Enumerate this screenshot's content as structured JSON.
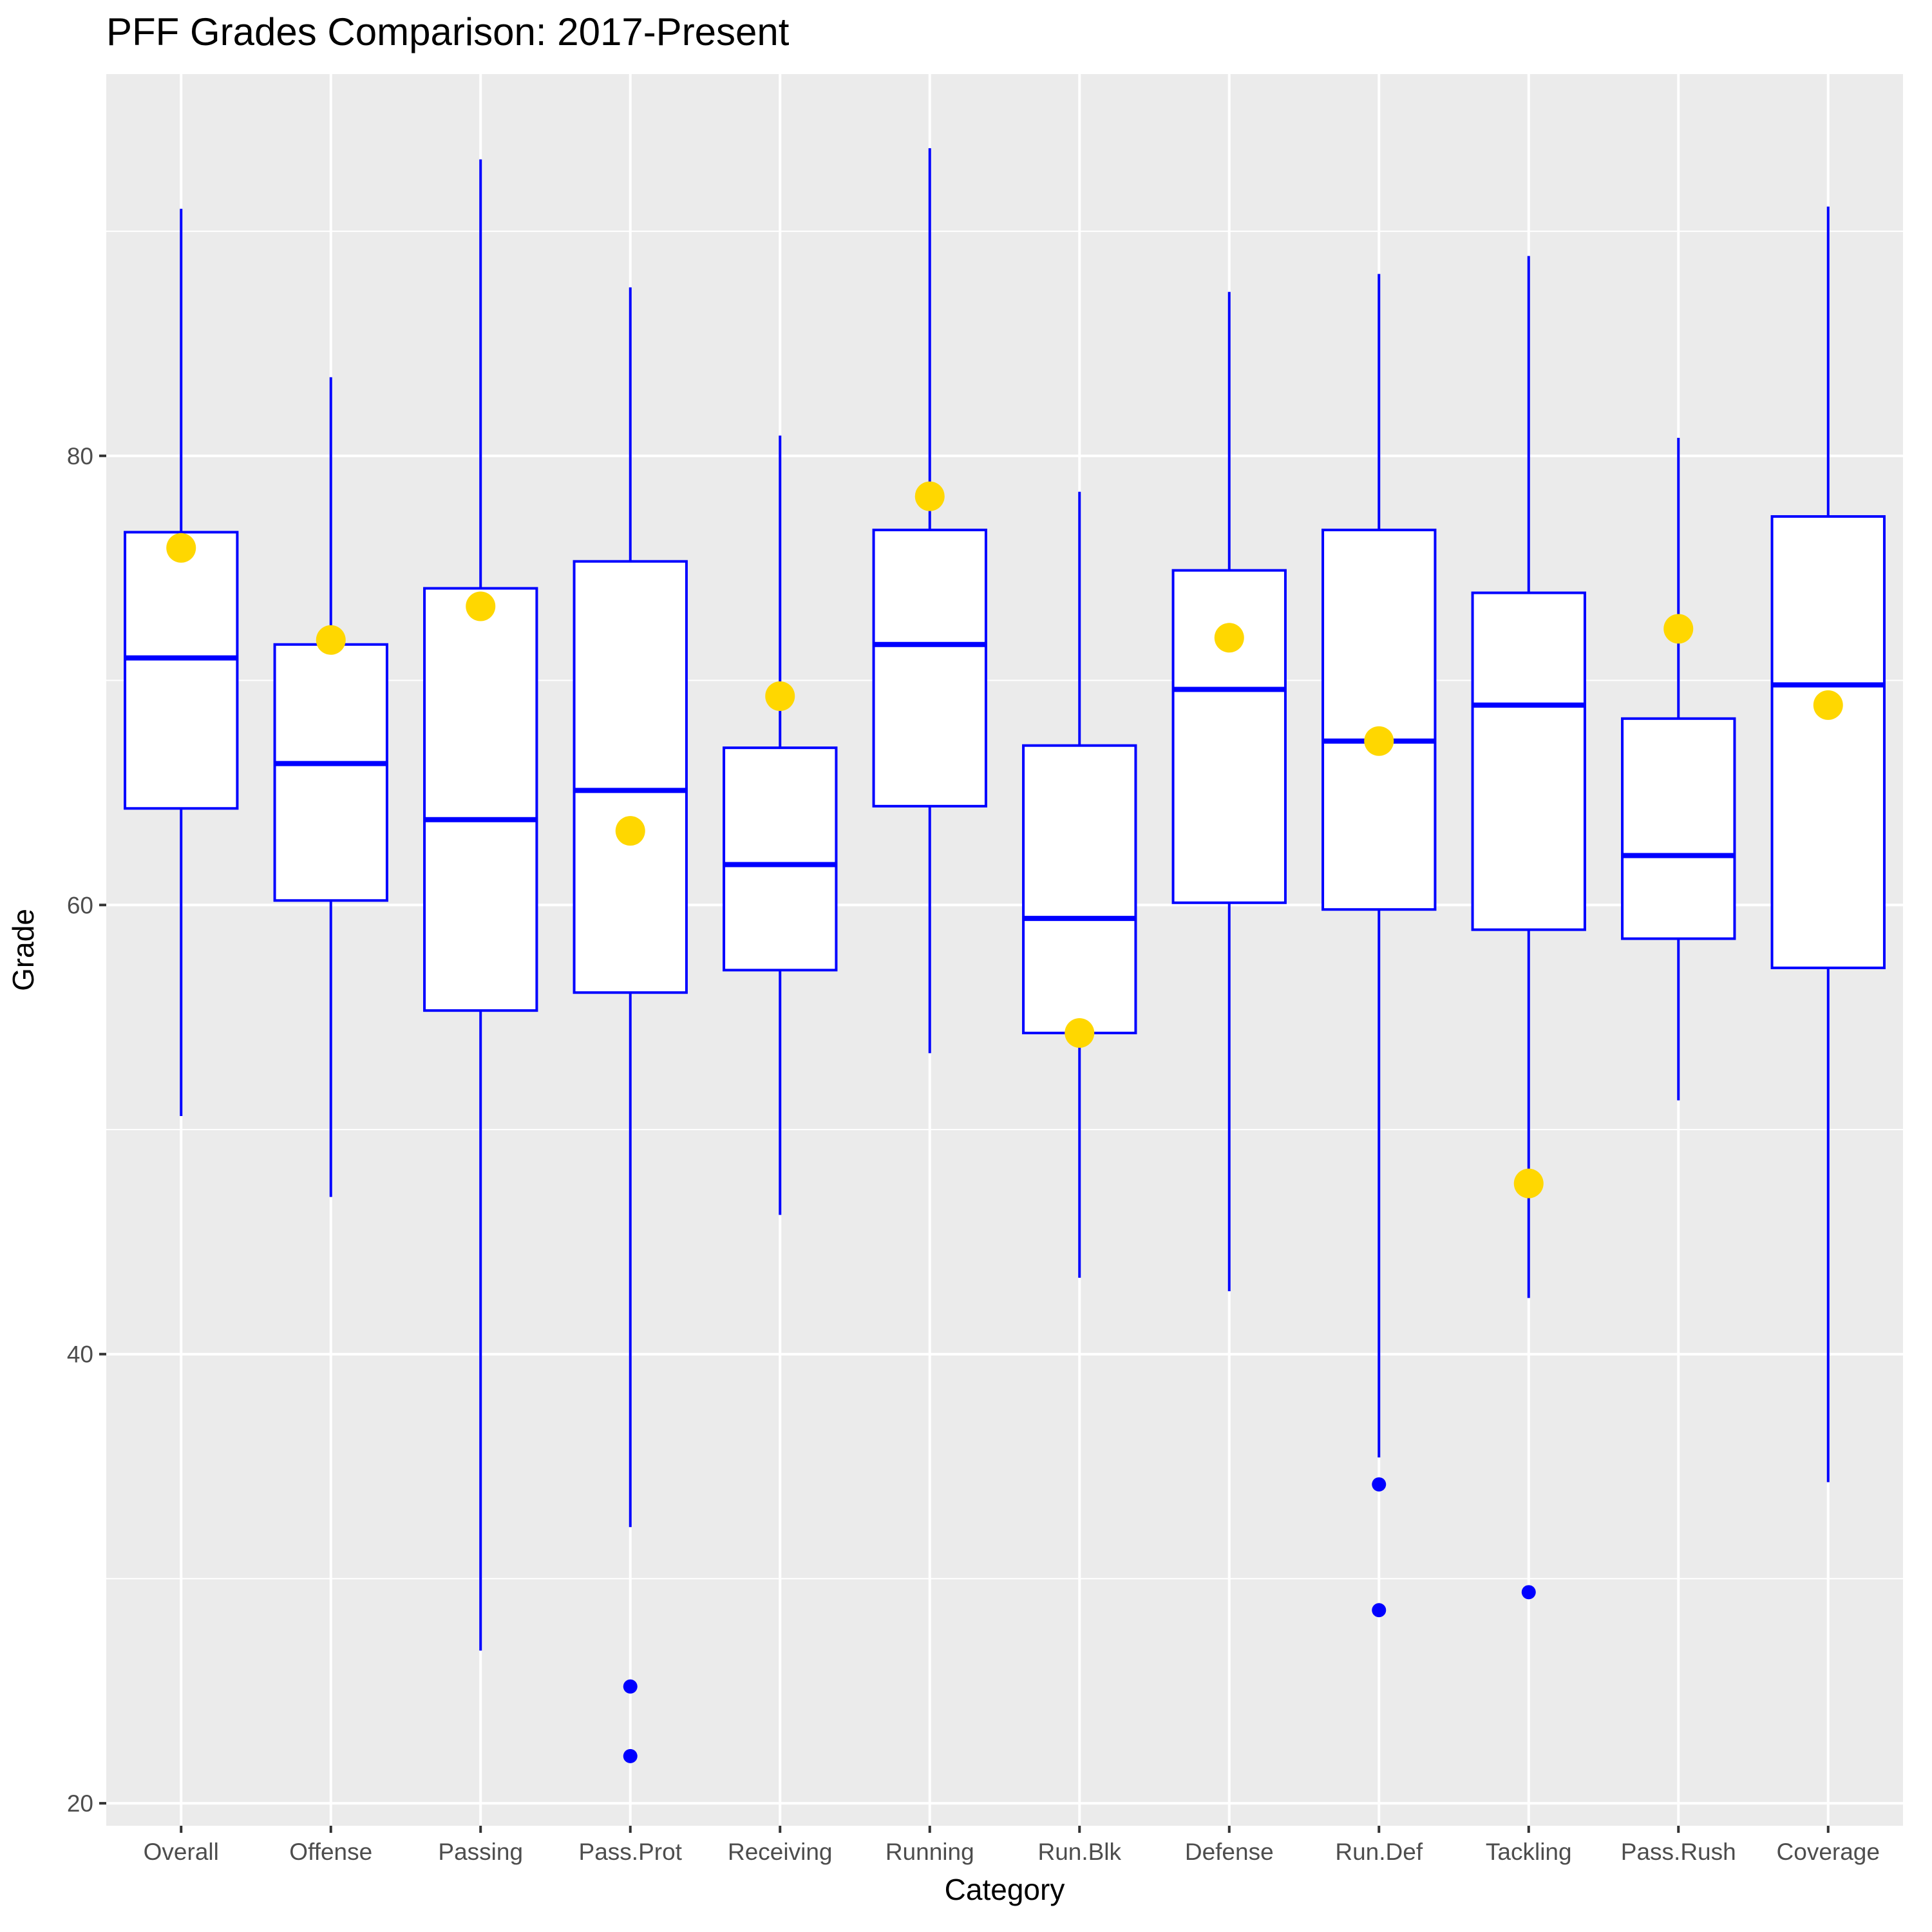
{
  "chart_data": {
    "type": "boxplot",
    "title": "PFF Grades Comparison: 2017-Present",
    "xlabel": "Category",
    "ylabel": "Grade",
    "ylim": [
      19,
      97
    ],
    "yticks": [
      20,
      40,
      60,
      80
    ],
    "grid": true,
    "legend": "none",
    "colors": {
      "panel_bg": "#EBEBEB",
      "grid": "#FFFFFF",
      "box_stroke": "#0000FF",
      "box_fill": "#FFFFFF",
      "outlier": "#0000FF",
      "highlight_point": "#FFD700"
    },
    "categories": [
      "Overall",
      "Offense",
      "Passing",
      "Pass.Prot",
      "Receiving",
      "Running",
      "Run.Blk",
      "Defense",
      "Run.Def",
      "Tackling",
      "Pass.Rush",
      "Coverage"
    ],
    "boxes": [
      {
        "category": "Overall",
        "whisker_low": 50.6,
        "q1": 64.3,
        "median": 71.0,
        "q3": 76.6,
        "whisker_high": 91.0,
        "outliers": [],
        "point": 75.9
      },
      {
        "category": "Offense",
        "whisker_low": 47.0,
        "q1": 60.2,
        "median": 66.3,
        "q3": 71.6,
        "whisker_high": 83.5,
        "outliers": [],
        "point": 71.8
      },
      {
        "category": "Passing",
        "whisker_low": 26.8,
        "q1": 55.3,
        "median": 63.8,
        "q3": 74.1,
        "whisker_high": 93.2,
        "outliers": [],
        "point": 73.3
      },
      {
        "category": "Pass.Prot",
        "whisker_low": 32.3,
        "q1": 56.1,
        "median": 65.1,
        "q3": 75.3,
        "whisker_high": 87.5,
        "outliers": [
          25.2,
          22.1
        ],
        "point": 63.3
      },
      {
        "category": "Receiving",
        "whisker_low": 46.2,
        "q1": 57.1,
        "median": 61.8,
        "q3": 67.0,
        "whisker_high": 80.9,
        "outliers": [],
        "point": 69.3
      },
      {
        "category": "Running",
        "whisker_low": 53.4,
        "q1": 64.4,
        "median": 71.6,
        "q3": 76.7,
        "whisker_high": 93.7,
        "outliers": [],
        "point": 78.2
      },
      {
        "category": "Run.Blk",
        "whisker_low": 43.4,
        "q1": 54.3,
        "median": 59.4,
        "q3": 67.1,
        "whisker_high": 78.4,
        "outliers": [],
        "point": 54.3
      },
      {
        "category": "Defense",
        "whisker_low": 42.8,
        "q1": 60.1,
        "median": 69.6,
        "q3": 74.9,
        "whisker_high": 87.3,
        "outliers": [],
        "point": 71.9
      },
      {
        "category": "Run.Def",
        "whisker_low": 35.4,
        "q1": 59.8,
        "median": 67.3,
        "q3": 76.7,
        "whisker_high": 88.1,
        "outliers": [
          34.2,
          28.6
        ],
        "point": 67.3
      },
      {
        "category": "Tackling",
        "whisker_low": 42.5,
        "q1": 58.9,
        "median": 68.9,
        "q3": 73.9,
        "whisker_high": 88.9,
        "outliers": [
          29.4
        ],
        "point": 47.6
      },
      {
        "category": "Pass.Rush",
        "whisker_low": 51.3,
        "q1": 58.5,
        "median": 62.2,
        "q3": 68.3,
        "whisker_high": 80.8,
        "outliers": [],
        "point": 72.3
      },
      {
        "category": "Coverage",
        "whisker_low": 34.3,
        "q1": 57.2,
        "median": 69.8,
        "q3": 77.3,
        "whisker_high": 91.1,
        "outliers": [],
        "point": 68.9
      }
    ]
  }
}
